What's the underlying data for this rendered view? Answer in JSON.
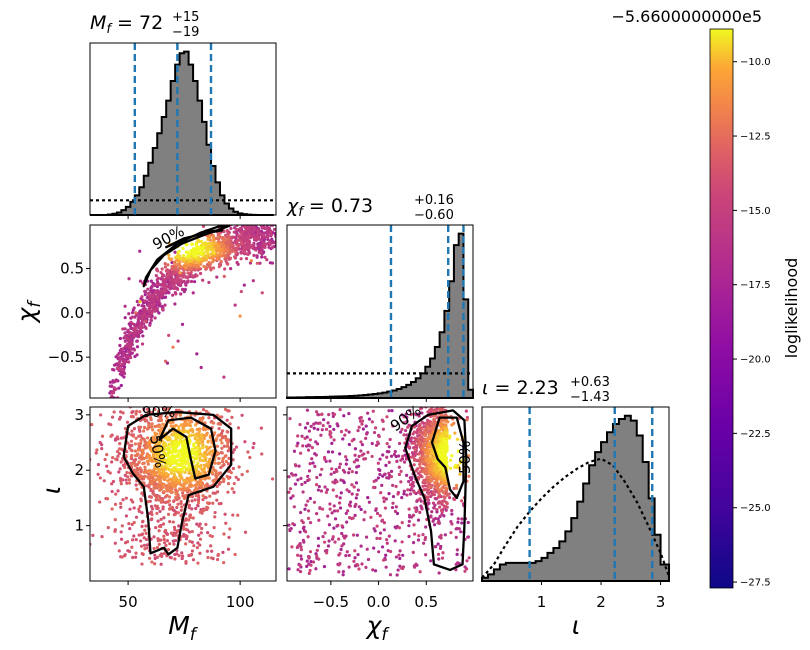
{
  "chart_data": {
    "type": "corner",
    "parameters": [
      {
        "key": "mf",
        "axis_label": "M",
        "axis_sub": "f",
        "range": [
          33,
          116
        ],
        "ticks": [
          50,
          100
        ]
      },
      {
        "key": "chif",
        "axis_label": "χ",
        "axis_sub": "f",
        "range": [
          -0.96,
          0.99
        ],
        "ticks": [
          -0.5,
          0.0,
          0.5
        ]
      },
      {
        "key": "iota",
        "axis_label": "ι",
        "axis_sub": "",
        "range": [
          0.0,
          3.1416
        ],
        "ticks": [
          1,
          2,
          3
        ]
      }
    ],
    "titles": [
      {
        "param": "mf",
        "sym": "M",
        "sub": "f",
        "median": "72",
        "plus": "+15",
        "minus": "−19"
      },
      {
        "param": "chif",
        "sym": "χ",
        "sub": "f",
        "median": "0.73",
        "plus": "+0.16",
        "minus": "−0.60"
      },
      {
        "param": "iota",
        "sym": "ι",
        "sub": "",
        "median": "2.23",
        "plus": "+0.63",
        "minus": "−1.43"
      }
    ],
    "marginals": {
      "mf": {
        "bins": [
          33,
          35,
          37,
          39,
          41,
          43,
          45,
          47,
          49,
          51,
          53,
          55,
          57,
          59,
          61,
          63,
          65,
          67,
          69,
          71,
          73,
          75,
          77,
          79,
          81,
          83,
          85,
          87,
          89,
          91,
          93,
          95,
          97,
          99,
          101,
          103,
          105,
          107,
          109,
          111,
          113,
          115
        ],
        "counts": [
          0,
          0,
          0,
          0,
          0.003,
          0.008,
          0.015,
          0.03,
          0.05,
          0.08,
          0.12,
          0.17,
          0.24,
          0.32,
          0.41,
          0.5,
          0.6,
          0.7,
          0.82,
          0.92,
          0.99,
          1.0,
          0.92,
          0.82,
          0.7,
          0.57,
          0.43,
          0.3,
          0.2,
          0.12,
          0.07,
          0.04,
          0.02,
          0.01,
          0.005,
          0.002,
          0.001,
          0,
          0,
          0,
          0
        ],
        "prior_level": 0.09,
        "quantiles": [
          53,
          72,
          87
        ]
      },
      "chif": {
        "bins": [
          -0.96,
          -0.91,
          -0.86,
          -0.81,
          -0.76,
          -0.71,
          -0.66,
          -0.61,
          -0.56,
          -0.51,
          -0.46,
          -0.41,
          -0.36,
          -0.31,
          -0.26,
          -0.21,
          -0.16,
          -0.11,
          -0.06,
          -0.01,
          0.04,
          0.09,
          0.14,
          0.19,
          0.24,
          0.29,
          0.34,
          0.39,
          0.44,
          0.49,
          0.54,
          0.59,
          0.64,
          0.69,
          0.74,
          0.79,
          0.84,
          0.89,
          0.94,
          0.99
        ],
        "counts": [
          0.003,
          0.003,
          0.004,
          0.004,
          0.005,
          0.005,
          0.006,
          0.006,
          0.007,
          0.008,
          0.009,
          0.01,
          0.011,
          0.012,
          0.014,
          0.016,
          0.018,
          0.021,
          0.024,
          0.028,
          0.033,
          0.039,
          0.046,
          0.055,
          0.066,
          0.08,
          0.097,
          0.12,
          0.15,
          0.19,
          0.24,
          0.31,
          0.4,
          0.53,
          0.71,
          0.93,
          1.0,
          0.6,
          0.05
        ],
        "prior_level": 0.15,
        "quantiles": [
          0.13,
          0.73,
          0.89
        ]
      },
      "iota": {
        "bins": [
          0.0,
          0.1,
          0.2,
          0.3,
          0.4,
          0.5,
          0.6,
          0.7,
          0.8,
          0.9,
          1.0,
          1.1,
          1.2,
          1.3,
          1.4,
          1.5,
          1.6,
          1.7,
          1.8,
          1.9,
          2.0,
          2.1,
          2.2,
          2.3,
          2.4,
          2.5,
          2.6,
          2.7,
          2.8,
          2.9,
          3.0,
          3.1416
        ],
        "counts": [
          0.02,
          0.04,
          0.07,
          0.1,
          0.11,
          0.11,
          0.11,
          0.11,
          0.11,
          0.12,
          0.14,
          0.17,
          0.2,
          0.24,
          0.3,
          0.38,
          0.48,
          0.59,
          0.7,
          0.78,
          0.84,
          0.9,
          0.95,
          0.98,
          1.0,
          0.97,
          0.88,
          0.72,
          0.5,
          0.28,
          0.1
        ],
        "prior_x": [
          0.0,
          0.2,
          0.4,
          0.6,
          0.8,
          1.0,
          1.2,
          1.4,
          1.6,
          1.8,
          2.0,
          2.2,
          2.4,
          2.6,
          2.8,
          3.0,
          3.14
        ],
        "prior_y": [
          0.02,
          0.1,
          0.22,
          0.33,
          0.42,
          0.5,
          0.57,
          0.63,
          0.68,
          0.72,
          0.74,
          0.7,
          0.6,
          0.48,
          0.33,
          0.17,
          0.03
        ],
        "quantiles": [
          0.8,
          2.23,
          2.86
        ]
      }
    },
    "contour_labels": [
      "90%",
      "50%"
    ],
    "colorbar": {
      "label": "loglikelihood",
      "offset_text": "−5.6600000000e5",
      "min": -27.7,
      "max": -8.9,
      "ticks": [
        "−10.0",
        "−12.5",
        "−15.0",
        "−17.5",
        "−20.0",
        "−22.5",
        "−25.0",
        "−27.5"
      ],
      "tick_values": [
        -10.0,
        -12.5,
        -15.0,
        -17.5,
        -20.0,
        -22.5,
        -25.0,
        -27.5
      ]
    },
    "colors": {
      "hist_fill": "#808080",
      "quantile_line": "#1f77b4",
      "contour": "#000000",
      "prior": "#000000"
    }
  }
}
